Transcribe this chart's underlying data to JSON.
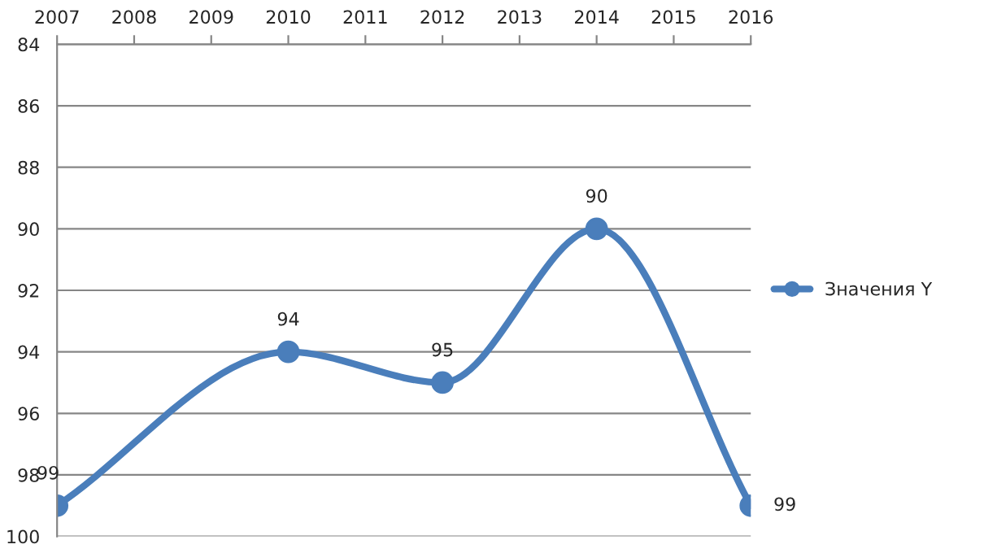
{
  "chart_data": {
    "type": "line",
    "x": [
      2007,
      2010,
      2012,
      2014,
      2016
    ],
    "series": [
      {
        "name": "Значения Y",
        "color": "#4a7ebb",
        "values": [
          99,
          94,
          95,
          90,
          99
        ]
      }
    ],
    "xlim": [
      2007,
      2016
    ],
    "xticks": [
      2007,
      2008,
      2009,
      2010,
      2011,
      2012,
      2013,
      2014,
      2015,
      2016
    ],
    "ylim": [
      100,
      84
    ],
    "yticks": [
      84,
      86,
      88,
      90,
      92,
      94,
      96,
      98,
      100
    ],
    "grid": "y",
    "legend": "right",
    "marker": "circle",
    "line_style": "solid",
    "data_labels": true
  }
}
